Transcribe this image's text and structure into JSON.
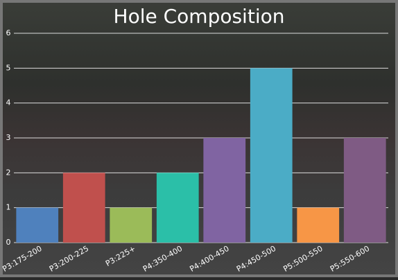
{
  "chart_data": {
    "type": "bar",
    "title": "Hole Composition",
    "categories": [
      "P3:175-200",
      "P3:200-225",
      "P3:225+",
      "P4:350-400",
      "P4:400-450",
      "P4:450-500",
      "P5:500-550",
      "P5:550-600"
    ],
    "values": [
      1,
      2,
      1,
      2,
      3,
      5,
      1,
      3
    ],
    "colors": [
      "#4f81bd",
      "#c0504d",
      "#9bbb59",
      "#2bbfa8",
      "#8064a2",
      "#4bacc6",
      "#f79646",
      "#7f5b84"
    ],
    "ylim": [
      0,
      6
    ],
    "yticks": [
      0,
      1,
      2,
      3,
      4,
      5,
      6
    ],
    "grid": true
  }
}
